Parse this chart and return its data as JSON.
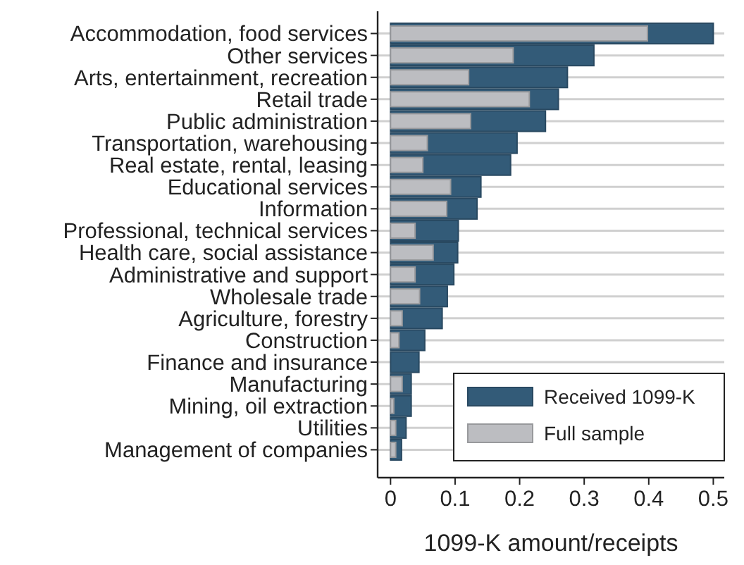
{
  "chart_data": {
    "type": "bar",
    "orientation": "horizontal",
    "xlabel": "1099-K amount/receipts",
    "categories": [
      "Accommodation, food services",
      "Other services",
      "Arts, entertainment, recreation",
      "Retail trade",
      "Public administration",
      "Transportation, warehousing",
      "Real estate, rental, leasing",
      "Educational services",
      "Information",
      "Professional, technical services",
      "Health care, social assistance",
      "Administrative and support",
      "Wholesale trade",
      "Agriculture, forestry",
      "Construction",
      "Finance and insurance",
      "Manufacturing",
      "Mining, oil extraction",
      "Utilities",
      "Management of companies"
    ],
    "series": [
      {
        "name": "Received 1099-K",
        "color": "#335b78",
        "values": [
          0.5,
          0.315,
          0.274,
          0.26,
          0.24,
          0.196,
          0.186,
          0.14,
          0.134,
          0.105,
          0.104,
          0.098,
          0.088,
          0.08,
          0.053,
          0.044,
          0.032,
          0.032,
          0.024,
          0.017
        ]
      },
      {
        "name": "Full sample",
        "color": "#bcbdc1",
        "values": [
          0.398,
          0.19,
          0.121,
          0.215,
          0.124,
          0.057,
          0.05,
          0.093,
          0.087,
          0.038,
          0.066,
          0.038,
          0.045,
          0.018,
          0.013,
          null,
          0.018,
          0.005,
          0.008,
          0.008
        ]
      }
    ],
    "xlim": [
      -0.02,
      0.517
    ],
    "xticks": [
      0,
      0.1,
      0.2,
      0.3,
      0.4,
      0.5
    ],
    "grid": "y",
    "legend": "bottom right"
  }
}
